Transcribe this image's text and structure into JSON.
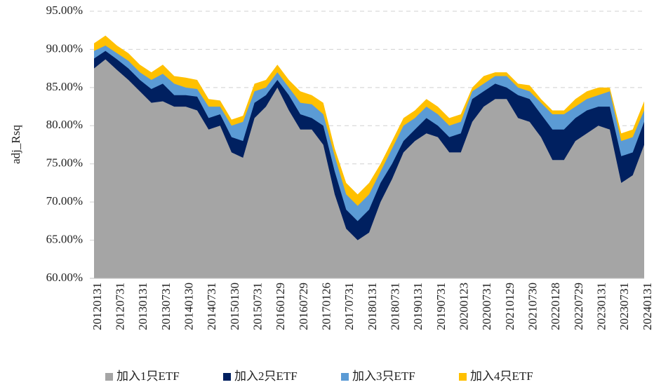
{
  "chart_data": {
    "type": "area",
    "y_label": "adj_Rsq",
    "categories": [
      "20120131",
      null,
      "20120731",
      null,
      "20130131",
      null,
      "20130731",
      null,
      "20140130",
      null,
      "20140731",
      null,
      "20150130",
      null,
      "20150731",
      null,
      "20160129",
      null,
      "20160729",
      null,
      "20170126",
      null,
      "20170731",
      null,
      "20180131",
      null,
      "20180731",
      null,
      "20190131",
      null,
      "20190731",
      null,
      "20200123",
      null,
      "20200731",
      null,
      "20210129",
      null,
      "20210730",
      null,
      "20220128",
      null,
      "20220729",
      null,
      "20230131",
      null,
      "20230731",
      null,
      "20240131"
    ],
    "series": [
      {
        "name": "加入1只ETF",
        "color": "#a5a5a5",
        "values": [
          87.5,
          88.7,
          87.3,
          86.0,
          84.5,
          83.0,
          83.2,
          82.5,
          82.5,
          82.0,
          79.5,
          80.0,
          76.5,
          75.8,
          81.0,
          82.5,
          85.0,
          82.0,
          79.5,
          79.5,
          77.5,
          71.0,
          66.5,
          65.0,
          66.0,
          70.0,
          73.0,
          76.5,
          78.0,
          79.0,
          78.5,
          76.5,
          76.5,
          80.5,
          82.5,
          83.5,
          83.5,
          81.0,
          80.5,
          78.5,
          75.5,
          75.5,
          78.0,
          79.0,
          80.0,
          79.5,
          72.5,
          73.5,
          77.5
        ]
      },
      {
        "name": "加入2只ETF",
        "color": "#002060",
        "values": [
          88.8,
          89.8,
          88.7,
          87.5,
          86.0,
          84.8,
          85.5,
          84.0,
          84.0,
          83.8,
          81.0,
          81.5,
          78.5,
          78.0,
          83.0,
          84.0,
          86.0,
          84.0,
          81.5,
          81.0,
          80.0,
          74.0,
          69.0,
          67.5,
          69.0,
          72.5,
          75.0,
          78.0,
          79.5,
          81.0,
          80.0,
          78.5,
          79.0,
          83.5,
          84.5,
          85.5,
          85.0,
          84.0,
          83.5,
          81.5,
          79.5,
          79.5,
          81.0,
          82.0,
          82.5,
          82.5,
          76.0,
          76.5,
          80.5
        ]
      },
      {
        "name": "加入3只ETF",
        "color": "#5b9bd5",
        "values": [
          89.8,
          90.5,
          89.5,
          88.5,
          87.0,
          86.0,
          86.8,
          85.5,
          85.0,
          84.8,
          82.5,
          82.5,
          80.0,
          80.5,
          84.5,
          85.0,
          87.0,
          85.0,
          83.0,
          82.8,
          81.5,
          76.0,
          71.0,
          69.5,
          71.0,
          74.0,
          77.0,
          80.0,
          81.0,
          82.5,
          81.5,
          80.0,
          80.5,
          84.5,
          85.5,
          86.5,
          86.5,
          85.0,
          84.5,
          83.0,
          81.5,
          81.5,
          82.5,
          83.5,
          84.0,
          84.5,
          78.0,
          78.5,
          82.0
        ]
      },
      {
        "name": "加入4只ETF",
        "color": "#ffc000",
        "values": [
          90.8,
          91.8,
          90.5,
          89.5,
          88.0,
          87.0,
          88.0,
          86.5,
          86.3,
          86.0,
          83.5,
          83.3,
          80.8,
          81.3,
          85.5,
          86.0,
          88.0,
          86.0,
          84.5,
          84.0,
          83.0,
          77.0,
          72.5,
          71.0,
          72.5,
          75.0,
          78.0,
          81.0,
          82.0,
          83.5,
          82.5,
          81.0,
          81.5,
          85.0,
          86.5,
          87.0,
          87.0,
          85.5,
          85.3,
          83.5,
          82.0,
          82.0,
          83.5,
          84.5,
          85.0,
          85.0,
          79.0,
          79.5,
          83.2
        ]
      }
    ],
    "ylim": [
      60,
      95
    ],
    "yticks": [
      {
        "value": 60,
        "label": "60.00%"
      },
      {
        "value": 65,
        "label": "65.00%"
      },
      {
        "value": 70,
        "label": "70.00%"
      },
      {
        "value": 75,
        "label": "75.00%"
      },
      {
        "value": 80,
        "label": "80.00%"
      },
      {
        "value": 85,
        "label": "85.00%"
      },
      {
        "value": 90,
        "label": "90.00%"
      },
      {
        "value": 95,
        "label": "95.00%"
      }
    ],
    "grid": true,
    "legend": "bottom"
  }
}
